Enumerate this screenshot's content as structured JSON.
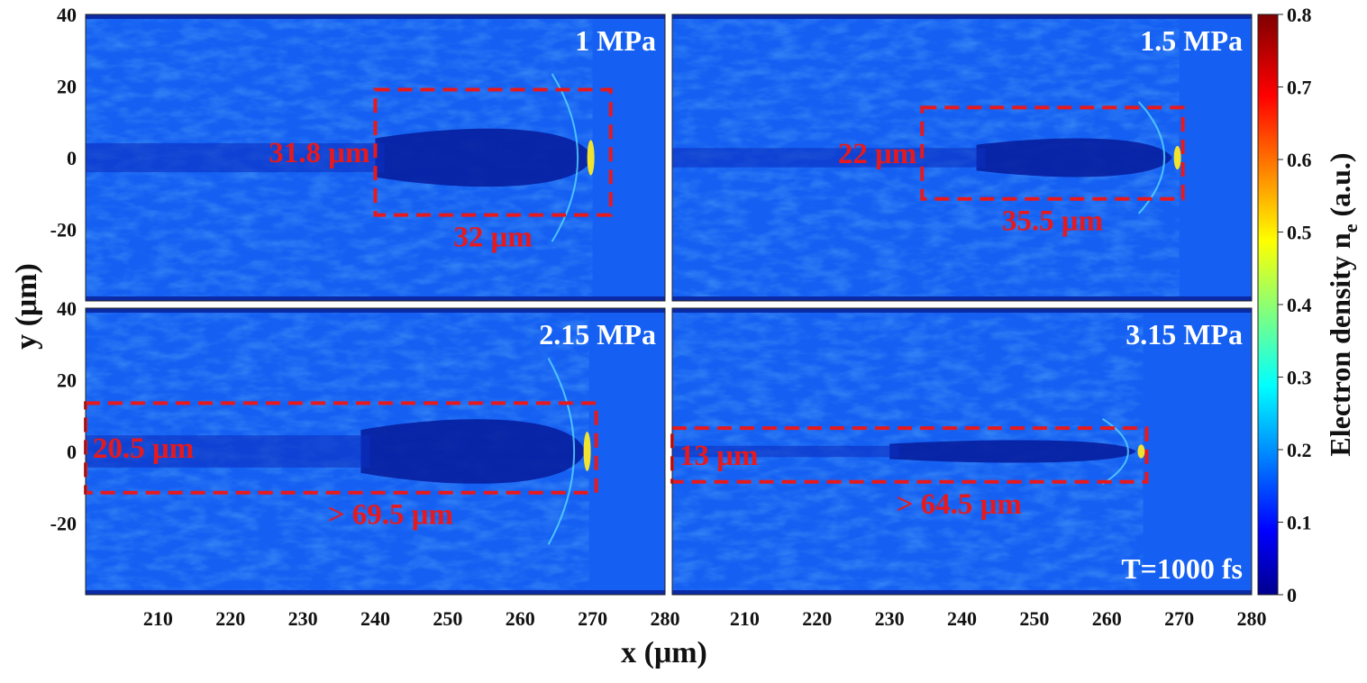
{
  "chart_data": {
    "type": "heatmap",
    "xlabel": "x (μm)",
    "ylabel": "y (μm)",
    "x_ticks": [
      "210",
      "220",
      "230",
      "240",
      "250",
      "260",
      "270",
      "280"
    ],
    "y_ticks_top": [
      "40",
      "20",
      "0",
      "-20"
    ],
    "y_ticks_bottom": [
      "40",
      "20",
      "0",
      "-20"
    ],
    "xlim": [
      200,
      280
    ],
    "ylim": [
      -40,
      40
    ],
    "colorbar": {
      "label": "Electron density n",
      "label_sub": "e",
      "label_unit": " (a.u.)",
      "ticks": [
        "0",
        "0.1",
        "0.2",
        "0.3",
        "0.4",
        "0.5",
        "0.6",
        "0.7",
        "0.8"
      ],
      "range": [
        0,
        0.8
      ],
      "colormap": "jet"
    },
    "panels": [
      {
        "title": "1 MPa",
        "rect": {
          "x0": 240,
          "x1": 272.5,
          "y0": -16,
          "y1": 19
        },
        "width_label": "31.8 μm",
        "length_label": "32 μm",
        "front_x": 270,
        "cavity_x": [
          240,
          270
        ],
        "cavity_halfwidth": 9
      },
      {
        "title": "1.5 MPa",
        "rect": {
          "x0": 234.5,
          "x1": 270.5,
          "y0": -11.5,
          "y1": 14
        },
        "width_label": "22 μm",
        "length_label": "35.5 μm",
        "front_x": 270,
        "cavity_x": [
          242,
          269
        ],
        "cavity_halfwidth": 6
      },
      {
        "title": "2.15 MPa",
        "rect": {
          "x0": 200,
          "x1": 270.5,
          "y0": -11.5,
          "y1": 13.5
        },
        "width_label": "20.5 μm",
        "length_label": "> 69.5 μm",
        "front_x": 269.5,
        "cavity_x": [
          238,
          269
        ],
        "cavity_halfwidth": 10
      },
      {
        "title": "3.15 MPa",
        "rect": {
          "x0": 200,
          "x1": 265.5,
          "y0": -8.5,
          "y1": 6.5
        },
        "width_label": "13 μm",
        "length_label": "> 64.5 μm",
        "front_x": 265,
        "cavity_x": [
          230,
          264
        ],
        "cavity_halfwidth": 3.5
      }
    ],
    "time_label": "T=1000 fs",
    "colors": {
      "background_field": "#1560f2",
      "cavity": "#061a9a",
      "annotation": "#e8191c",
      "front": "#f0e430"
    }
  }
}
